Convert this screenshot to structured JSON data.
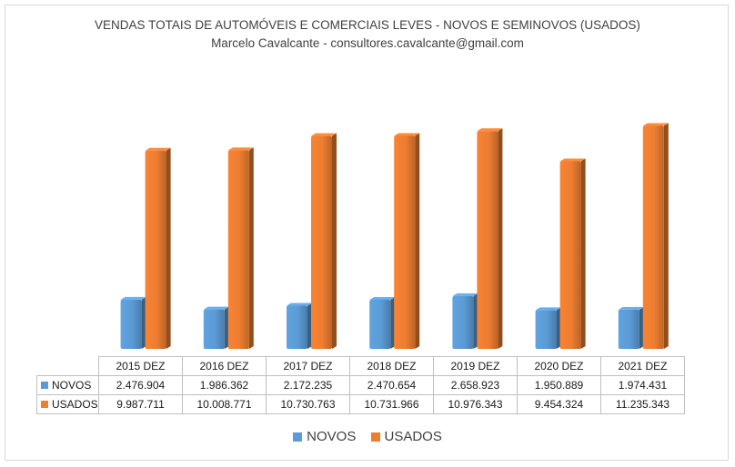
{
  "chart_data": {
    "type": "bar",
    "title": "VENDAS TOTAIS DE AUTOMÓVEIS E COMERCIAIS LEVES - NOVOS E SEMINOVOS (USADOS)",
    "subtitle": "Marcelo Cavalcante - consultores.cavalcante@gmail.com",
    "categories": [
      "2015 DEZ",
      "2016 DEZ",
      "2017 DEZ",
      "2018 DEZ",
      "2019 DEZ",
      "2020 DEZ",
      "2021 DEZ"
    ],
    "series": [
      {
        "name": "NOVOS",
        "values": [
          2476904,
          1986362,
          2172235,
          2470654,
          2658923,
          1950889,
          1974431
        ],
        "labels": [
          "2.476.904",
          "1.986.362",
          "2.172.235",
          "2.470.654",
          "2.658.923",
          "1.950.889",
          "1.974.431"
        ],
        "color": "#5b9bd5"
      },
      {
        "name": "USADOS",
        "values": [
          9987711,
          10008771,
          10730763,
          10731966,
          10976343,
          9454324,
          11235343
        ],
        "labels": [
          "9.987.711",
          "10.008.771",
          "10.730.763",
          "10.731.966",
          "10.976.343",
          "9.454.324",
          "11.235.343"
        ],
        "color": "#ed7d31"
      }
    ],
    "ylim": [
      0,
      13000000
    ],
    "grid": false,
    "legend_position": "bottom",
    "data_table": true
  }
}
